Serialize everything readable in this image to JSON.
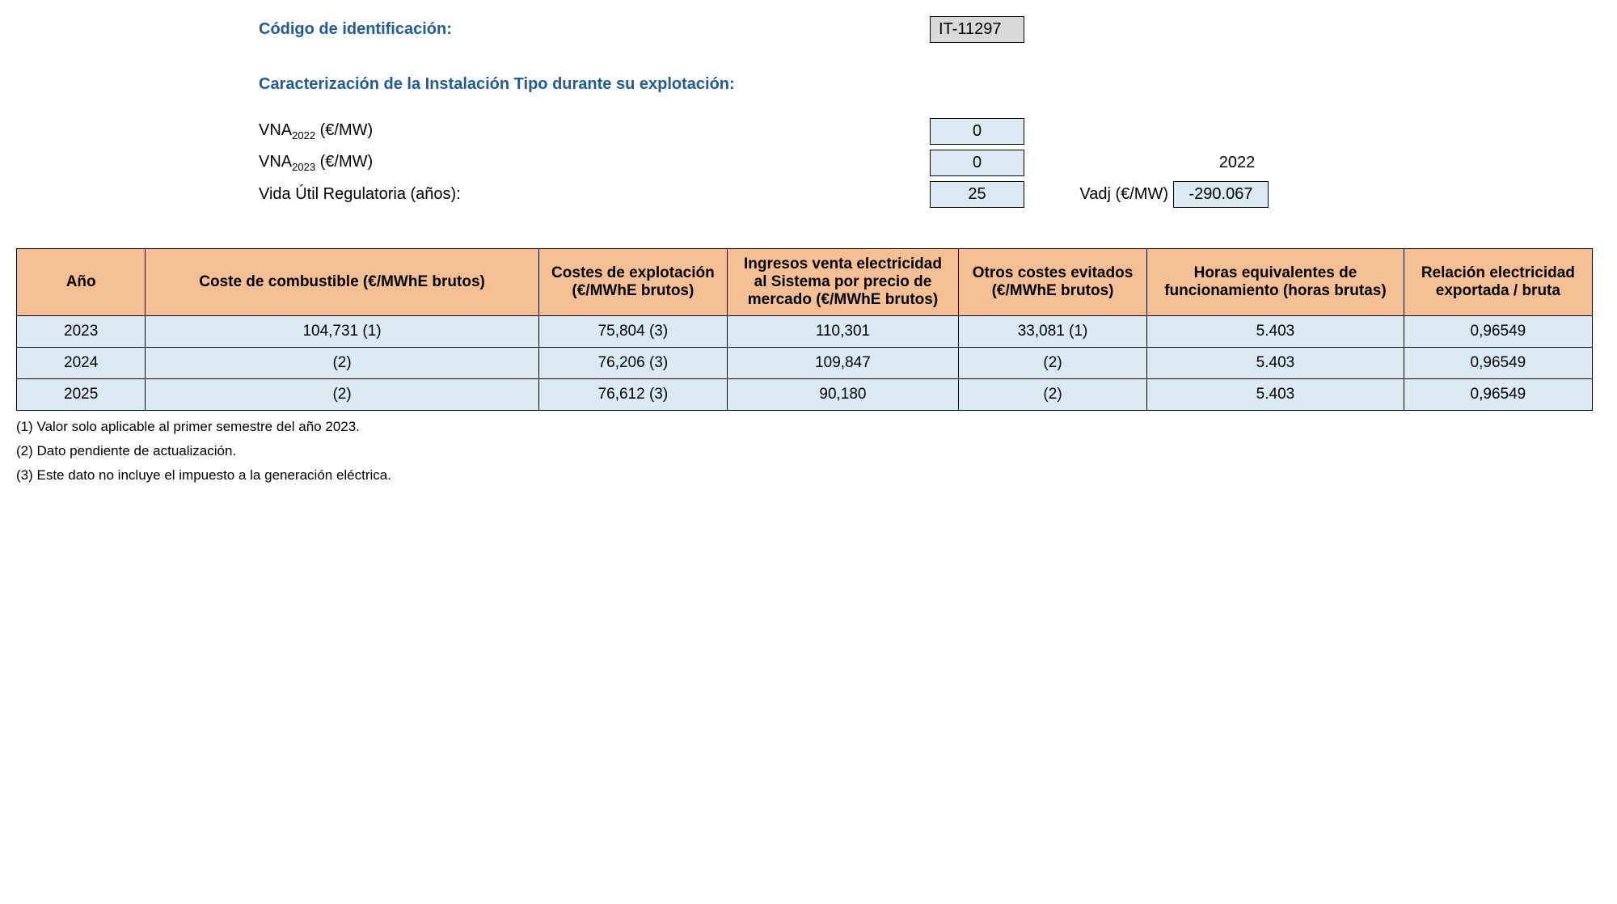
{
  "labels": {
    "id_label": "Código de identificación:",
    "subheading": "Caracterización de la Instalación Tipo durante su explotación:",
    "vna2022_label_prefix": "VNA",
    "vna2022_sub": "2022",
    "vna_unit": " (€/MW)",
    "vna2023_sub": "2023",
    "life_label": "Vida Útil Regulatoria (años):",
    "vadj_label": "Vadj (€/MW)"
  },
  "values": {
    "id_code": "IT-11297",
    "vna2022": "0",
    "vna2023": "0",
    "life": "25",
    "adj_year": "2022",
    "vadj": "-290.067"
  },
  "table": {
    "headers": {
      "year": "Año",
      "fuel": "Coste de combustible (€/MWhE brutos)",
      "opex": "Costes de explotación (€/MWhE brutos)",
      "rev": "Ingresos venta electricidad al Sistema por precio de mercado (€/MWhE brutos)",
      "other": "Otros costes evitados (€/MWhE brutos)",
      "hours": "Horas equivalentes de funcionamiento (horas brutas)",
      "ratio": "Relación electricidad exportada / bruta"
    },
    "rows": [
      {
        "year": "2023",
        "fuel": "104,731 (1)",
        "opex": "75,804 (3)",
        "rev": "110,301",
        "other": "33,081 (1)",
        "hours": "5.403",
        "ratio": "0,96549"
      },
      {
        "year": "2024",
        "fuel": "(2)",
        "opex": "76,206 (3)",
        "rev": "109,847",
        "other": "(2)",
        "hours": "5.403",
        "ratio": "0,96549"
      },
      {
        "year": "2025",
        "fuel": "(2)",
        "opex": "76,612 (3)",
        "rev": "90,180",
        "other": "(2)",
        "hours": "5.403",
        "ratio": "0,96549"
      }
    ]
  },
  "footnotes": {
    "n1": "(1) Valor solo aplicable al primer semestre del año 2023.",
    "n2": "(2) Dato pendiente de actualización.",
    "n3": "(3) Este dato no incluye el impuesto a la generación eléctrica."
  },
  "colors": {
    "heading": "#1f5c99",
    "th_bg": "#f4c093",
    "td_bg": "#d9eaf3",
    "code_bg": "#d9d9d9",
    "border": "#000000",
    "page_bg": "#ffffff"
  }
}
